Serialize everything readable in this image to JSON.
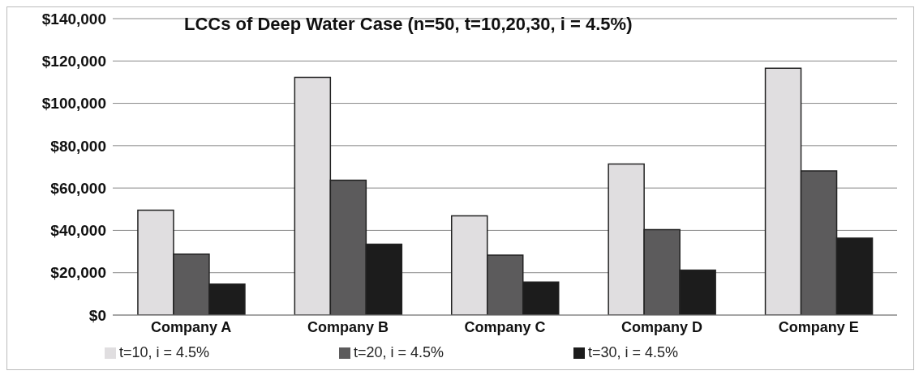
{
  "chart_data": {
    "type": "bar",
    "title": "LCCs of Deep Water Case (n=50, t=10,20,30, i = 4.5%)",
    "categories": [
      "Company A",
      "Company B",
      "Company C",
      "Company D",
      "Company E"
    ],
    "series": [
      {
        "name": "t=10, i = 4.5%",
        "color": "#e0dee0",
        "values": [
          49500,
          112300,
          46900,
          71300,
          116600
        ]
      },
      {
        "name": "t=20, i = 4.5%",
        "color": "#5c5b5c",
        "values": [
          28800,
          63700,
          28300,
          40400,
          68100
        ]
      },
      {
        "name": "t=30, i = 4.5%",
        "color": "#1c1c1c",
        "values": [
          14600,
          33500,
          15600,
          21200,
          36300
        ]
      }
    ],
    "ylim": [
      0,
      140000
    ],
    "yticks": [
      {
        "value": 0,
        "label": "$0"
      },
      {
        "value": 20000,
        "label": "$20,000"
      },
      {
        "value": 40000,
        "label": "$40,000"
      },
      {
        "value": 60000,
        "label": "$60,000"
      },
      {
        "value": 80000,
        "label": "$80,000"
      },
      {
        "value": 100000,
        "label": "$100,000"
      },
      {
        "value": 120000,
        "label": "$120,000"
      },
      {
        "value": 140000,
        "label": "$140,000"
      }
    ],
    "grid": "y",
    "legend": "bottom"
  }
}
